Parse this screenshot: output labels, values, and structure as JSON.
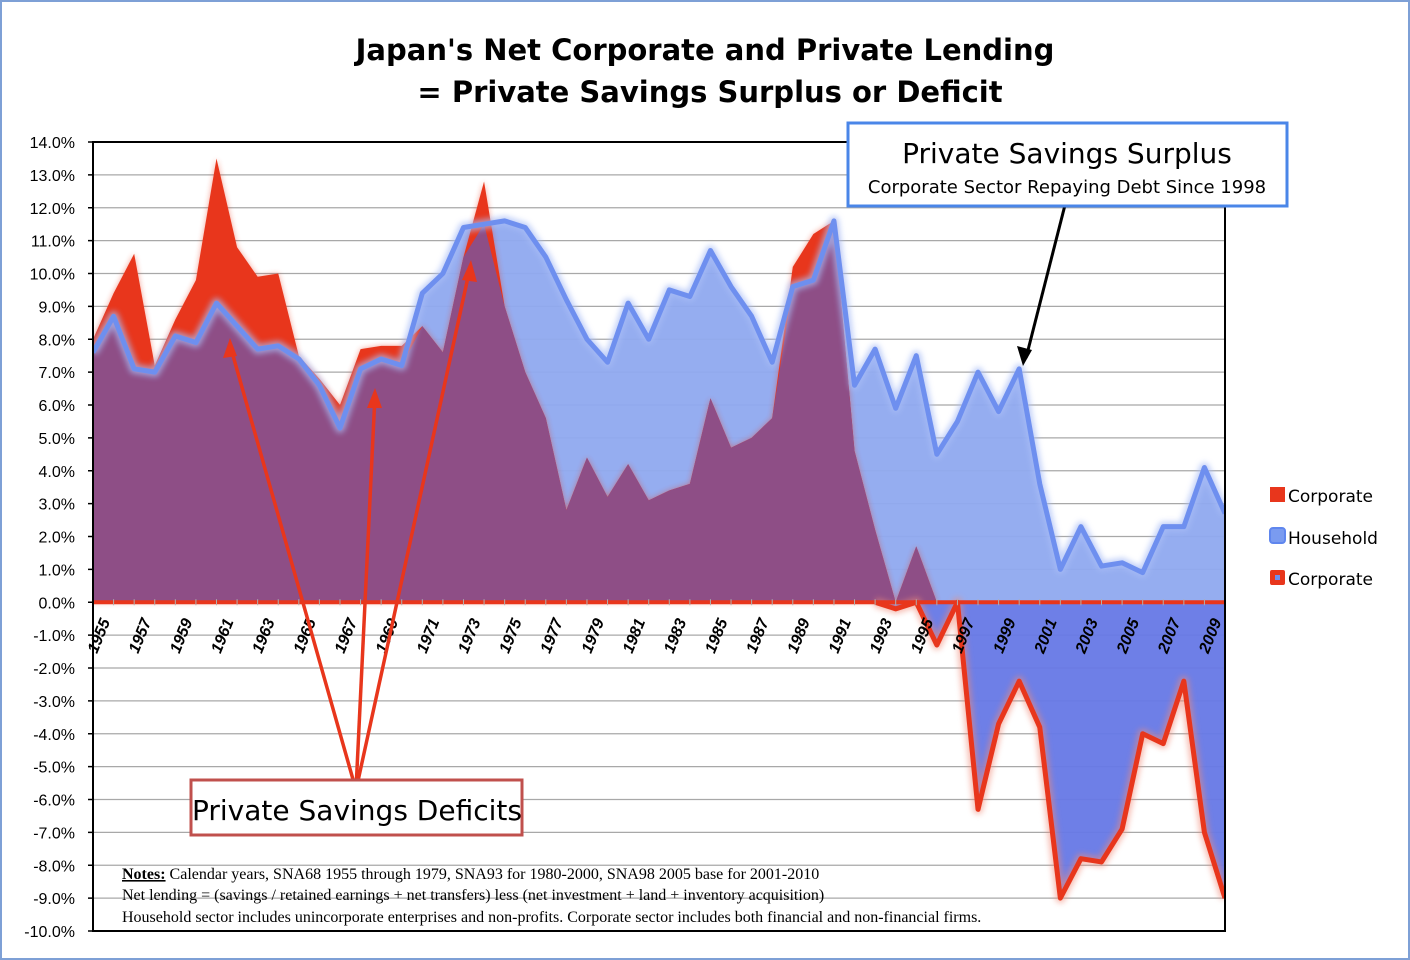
{
  "chart_data": {
    "type": "area",
    "title_line1": "Japan's Net Corporate and Private Lending",
    "title_line2": "= Private Savings Surplus or Deficit",
    "x": [
      1955,
      1956,
      1957,
      1958,
      1959,
      1960,
      1961,
      1962,
      1963,
      1964,
      1965,
      1966,
      1967,
      1968,
      1969,
      1970,
      1971,
      1972,
      1973,
      1974,
      1975,
      1976,
      1977,
      1978,
      1979,
      1980,
      1981,
      1982,
      1983,
      1984,
      1985,
      1986,
      1987,
      1988,
      1989,
      1990,
      1991,
      1992,
      1993,
      1994,
      1995,
      1996,
      1997,
      1998,
      1999,
      2000,
      2001,
      2002,
      2003,
      2004,
      2005,
      2006,
      2007,
      2008,
      2009,
      2010
    ],
    "x_tick_labels": [
      "1955",
      "1957",
      "1959",
      "1961",
      "1963",
      "1965",
      "1967",
      "1969",
      "1971",
      "1973",
      "1975",
      "1977",
      "1979",
      "1981",
      "1983",
      "1985",
      "1987",
      "1989",
      "1991",
      "1993",
      "1995",
      "1997",
      "1999",
      "2001",
      "2003",
      "2005",
      "2007",
      "2009"
    ],
    "y_tick_labels": [
      "14.0%",
      "13.0%",
      "12.0%",
      "11.0%",
      "10.0%",
      "9.0%",
      "8.0%",
      "7.0%",
      "6.0%",
      "5.0%",
      "4.0%",
      "3.0%",
      "2.0%",
      "1.0%",
      "0.0%",
      "-1.0%",
      "-2.0%",
      "-3.0%",
      "-4.0%",
      "-5.0%",
      "-6.0%",
      "-7.0%",
      "-8.0%",
      "-9.0%",
      "-10.0%"
    ],
    "ylim": [
      -10,
      14
    ],
    "grid": true,
    "legend_position": "right",
    "series": [
      {
        "name": "Corporate",
        "role": "corporate-positive-area",
        "color": "#e8361c",
        "values": [
          8.0,
          9.4,
          10.6,
          7.2,
          8.6,
          9.8,
          13.5,
          10.8,
          9.9,
          10.0,
          7.5,
          6.8,
          6.0,
          7.7,
          7.8,
          7.8,
          8.4,
          7.6,
          10.5,
          12.8,
          9.0,
          7.0,
          5.6,
          2.8,
          4.4,
          3.2,
          4.2,
          3.1,
          3.4,
          3.6,
          6.2,
          4.7,
          5.0,
          5.6,
          10.2,
          11.2,
          11.6,
          4.6,
          2.2,
          0.0,
          1.7,
          0.0,
          0.0,
          0,
          0,
          0,
          0,
          0,
          0,
          0,
          0,
          0,
          0,
          0,
          0,
          0
        ]
      },
      {
        "name": "Household",
        "role": "household",
        "color": "#6e8fef",
        "values": [
          7.6,
          8.7,
          7.1,
          7.0,
          8.1,
          7.9,
          9.1,
          8.4,
          7.7,
          7.8,
          7.4,
          6.6,
          5.3,
          7.1,
          7.4,
          7.2,
          9.4,
          10.0,
          11.4,
          11.5,
          11.6,
          11.4,
          10.5,
          9.2,
          8.0,
          7.3,
          9.1,
          8.0,
          9.5,
          9.3,
          10.7,
          9.6,
          8.7,
          7.3,
          9.6,
          9.8,
          11.6,
          6.6,
          7.7,
          5.9,
          7.5,
          4.5,
          5.5,
          7.0,
          5.8,
          7.1,
          3.6,
          1.0,
          2.3,
          1.1,
          1.2,
          0.9,
          2.3,
          2.3,
          4.1,
          2.7
        ]
      },
      {
        "name": "Corporate",
        "role": "corporate-line",
        "color": "#e8361c",
        "values": [
          8.0,
          9.4,
          10.6,
          7.2,
          8.6,
          9.8,
          13.5,
          10.8,
          9.9,
          10.0,
          7.5,
          6.8,
          6.0,
          7.7,
          7.8,
          7.8,
          8.4,
          7.6,
          10.5,
          12.8,
          9.0,
          7.0,
          5.6,
          2.8,
          4.4,
          3.2,
          4.2,
          3.1,
          3.4,
          3.6,
          6.2,
          4.7,
          5.0,
          5.6,
          10.2,
          11.2,
          11.6,
          4.6,
          2.2,
          -0.2,
          1.7,
          -1.3,
          0.1,
          -6.3,
          -3.7,
          -2.4,
          -3.8,
          -9.0,
          -7.8,
          -7.9,
          -6.9,
          -4.0,
          -4.3,
          -2.4,
          -7.0,
          -9.0
        ]
      }
    ],
    "overlap_color": "#8e4e86"
  },
  "notes": {
    "label": "Notes:",
    "line1": " Calendar years, SNA68 1955 through 1979, SNA93 for 1980-2000, SNA98 2005 base for 2001-2010",
    "line2": "Net lending = (savings / retained earnings + net transfers) less (net investment + land + inventory acquisition)",
    "line3": "Household sector includes unincorporate enterprises and non-profits. Corporate sector includes both financial and non-financial firms."
  },
  "callouts": {
    "surplus_title": "Private Savings Surplus",
    "surplus_subtitle": "Corporate Sector Repaying Debt Since 1998",
    "deficits_title": "Private Savings Deficits",
    "surplus_border": "#4a86e8",
    "deficits_border": "#c0504d"
  },
  "legend": {
    "items": [
      "Corporate",
      "Household",
      "Corporate"
    ]
  }
}
